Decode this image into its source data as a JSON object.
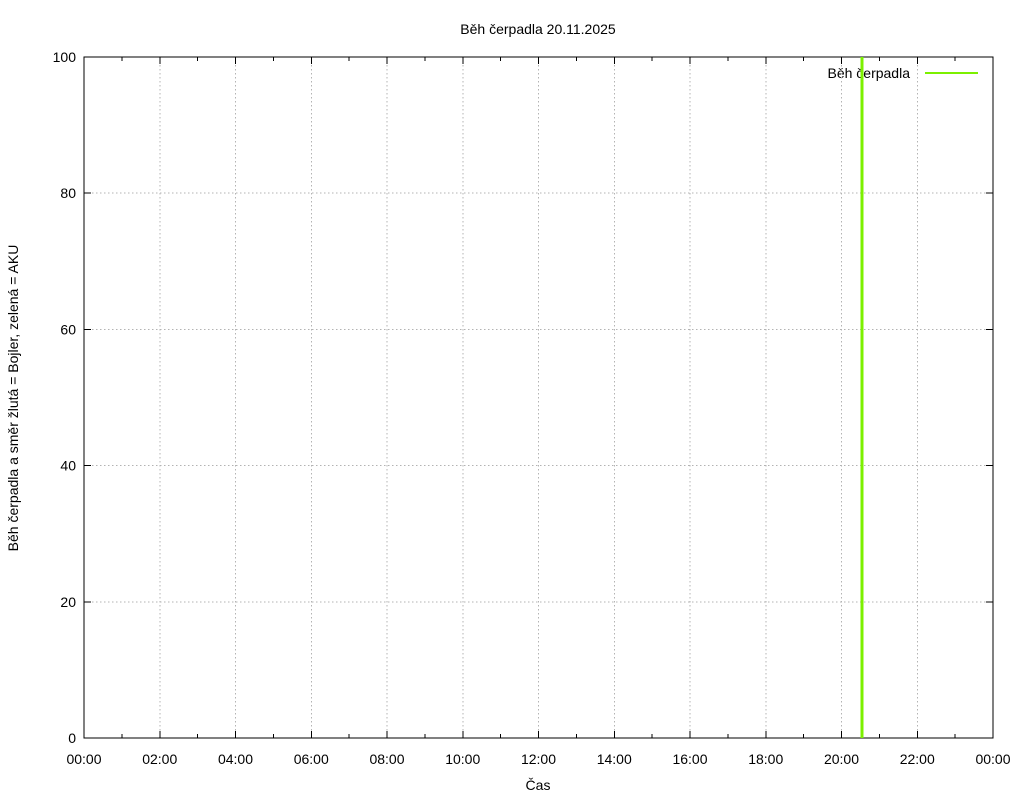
{
  "chart_data": {
    "type": "line",
    "title": "Běh čerpadla 20.11.2025",
    "xlabel": "Čas",
    "ylabel": "Běh čerpadla a směr žlutá = Bojler, zelená = AKU",
    "xlim_hours": [
      0,
      24
    ],
    "ylim": [
      0,
      100
    ],
    "y_ticks": [
      0,
      20,
      40,
      60,
      80,
      100
    ],
    "x_ticks": [
      {
        "hour": 0,
        "label": "00:00"
      },
      {
        "hour": 2,
        "label": "02:00"
      },
      {
        "hour": 4,
        "label": "04:00"
      },
      {
        "hour": 6,
        "label": "06:00"
      },
      {
        "hour": 8,
        "label": "08:00"
      },
      {
        "hour": 10,
        "label": "10:00"
      },
      {
        "hour": 12,
        "label": "12:00"
      },
      {
        "hour": 14,
        "label": "14:00"
      },
      {
        "hour": 16,
        "label": "16:00"
      },
      {
        "hour": 18,
        "label": "18:00"
      },
      {
        "hour": 20,
        "label": "20:00"
      },
      {
        "hour": 22,
        "label": "22:00"
      },
      {
        "hour": 24,
        "label": "00:00"
      }
    ],
    "x_minor_tick_hours": [
      1,
      3,
      5,
      7,
      9,
      11,
      13,
      15,
      17,
      19,
      21,
      23
    ],
    "grid": true,
    "legend": {
      "position": "top-right-inside",
      "entries": [
        {
          "label": "Běh čerpadla",
          "color": "#7cf000"
        }
      ]
    },
    "series": [
      {
        "name": "Běh čerpadla",
        "color": "#7cf000",
        "style": "vertical-impulse",
        "points": [
          {
            "x_hour": 20.54,
            "y_from": 0,
            "y_to": 100
          }
        ]
      }
    ],
    "colors": {
      "axis": "#000000",
      "grid": "#b3b3b3",
      "text": "#000000",
      "background": "#ffffff"
    }
  }
}
